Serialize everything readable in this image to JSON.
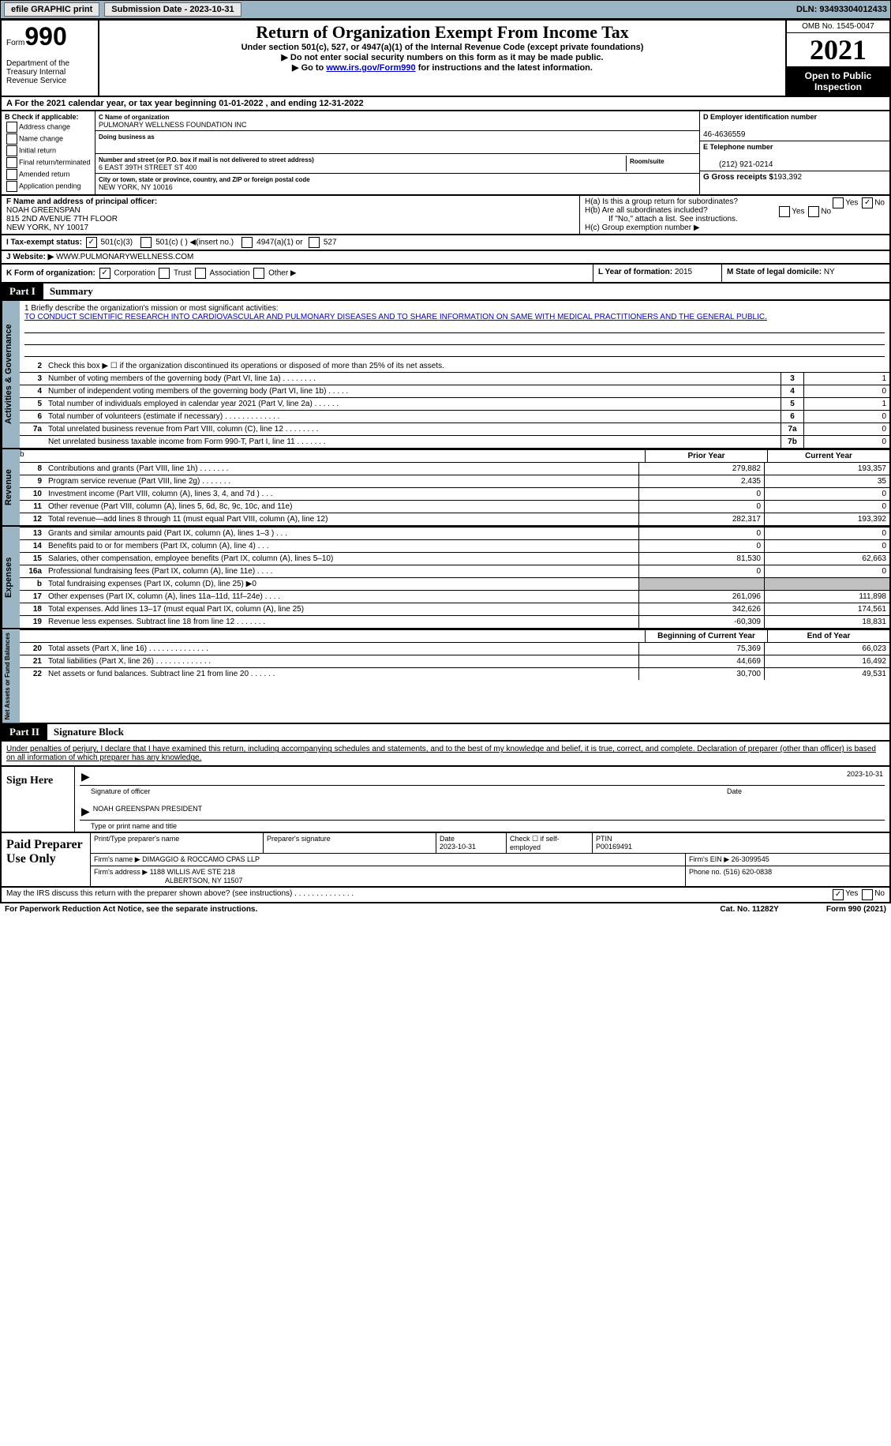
{
  "topbar": {
    "efile": "efile GRAPHIC print",
    "sub": "Submission Date - 2023-10-31",
    "dln": "DLN: 93493304012433"
  },
  "header": {
    "form": "Form",
    "num": "990",
    "title": "Return of Organization Exempt From Income Tax",
    "sub1": "Under section 501(c), 527, or 4947(a)(1) of the Internal Revenue Code (except private foundations)",
    "sub2": "▶ Do not enter social security numbers on this form as it may be made public.",
    "sub3": "▶ Go to ",
    "link": "www.irs.gov/Form990",
    "sub3b": " for instructions and the latest information.",
    "omb": "OMB No. 1545-0047",
    "year": "2021",
    "opi": "Open to Public Inspection",
    "dept": "Department of the Treasury Internal Revenue Service"
  },
  "a": {
    "text": "A For the 2021 calendar year, or tax year beginning 01-01-2022   , and ending 12-31-2022"
  },
  "b": {
    "label": "B Check if applicable:",
    "items": [
      "Address change",
      "Name change",
      "Initial return",
      "Final return/terminated",
      "Amended return",
      "Application pending"
    ]
  },
  "c": {
    "name_label": "C Name of organization",
    "name": "PULMONARY WELLNESS FOUNDATION INC",
    "dba_label": "Doing business as",
    "addr_label": "Number and street (or P.O. box if mail is not delivered to street address)",
    "addr": "6 EAST 39TH STREET ST 400",
    "room_label": "Room/suite",
    "city_label": "City or town, state or province, country, and ZIP or foreign postal code",
    "city": "NEW YORK, NY  10016"
  },
  "d": {
    "ein_label": "D Employer identification number",
    "ein": "46-4636559",
    "tel_label": "E Telephone number",
    "tel": "(212) 921-0214",
    "gross_label": "G Gross receipts $",
    "gross": "193,392"
  },
  "f": {
    "label": "F Name and address of principal officer:",
    "name": "NOAH GREENSPAN",
    "addr1": "815 2ND AVENUE 7TH FLOOR",
    "addr2": "NEW YORK, NY  10017"
  },
  "h": {
    "a": "H(a)  Is this a group return for subordinates?",
    "b": "H(b)  Are all subordinates included?",
    "bnote": "If \"No,\" attach a list. See instructions.",
    "c": "H(c)  Group exemption number ▶"
  },
  "i": {
    "label": "I   Tax-exempt status:",
    "c3": "501(c)(3)",
    "cN": "501(c) (  ) ◀(insert no.)",
    "a1": "4947(a)(1) or",
    "s527": "527"
  },
  "j": {
    "label": "J   Website: ▶",
    "val": "WWW.PULMONARYWELLNESS.COM"
  },
  "k": {
    "label": "K Form of organization:",
    "corp": "Corporation",
    "trust": "Trust",
    "assoc": "Association",
    "other": "Other ▶"
  },
  "l": {
    "label": "L Year of formation:",
    "val": "2015"
  },
  "m": {
    "label": "M State of legal domicile:",
    "val": "NY"
  },
  "part1": {
    "hdr": "Part I",
    "title": "Summary"
  },
  "mission": {
    "label": "1   Briefly describe the organization's mission or most significant activities:",
    "text": "TO CONDUCT SCIENTIFIC RESEARCH INTO CARDIOVASCULAR AND PULMONARY DISEASES AND TO SHARE INFORMATION ON SAME WITH MEDICAL PRACTITIONERS AND THE GENERAL PUBLIC."
  },
  "sum": {
    "l2": "Check this box ▶ ☐ if the organization discontinued its operations or disposed of more than 25% of its net assets.",
    "rows": [
      {
        "n": "3",
        "t": "Number of voting members of the governing body (Part VI, line 1a)   .    .    .    .    .    .    .    .",
        "b": "3",
        "v": "1"
      },
      {
        "n": "4",
        "t": "Number of independent voting members of the governing body (Part VI, line 1b)   .    .    .    .    .",
        "b": "4",
        "v": "0"
      },
      {
        "n": "5",
        "t": "Total number of individuals employed in calendar year 2021 (Part V, line 2a)   .    .    .    .    .    .",
        "b": "5",
        "v": "1"
      },
      {
        "n": "6",
        "t": "Total number of volunteers (estimate if necessary)   .    .    .    .    .    .    .    .    .    .    .    .    .",
        "b": "6",
        "v": "0"
      },
      {
        "n": "7a",
        "t": "Total unrelated business revenue from Part VIII, column (C), line 12   .    .    .    .    .    .    .    .",
        "b": "7a",
        "v": "0"
      },
      {
        "n": "",
        "t": "Net unrelated business taxable income from Form 990-T, Part I, line 11   .    .    .    .    .    .    .",
        "b": "7b",
        "v": "0"
      }
    ]
  },
  "fin": {
    "prior": "Prior Year",
    "current": "Current Year",
    "boy": "Beginning of Current Year",
    "eoy": "End of Year",
    "rev": [
      {
        "n": "8",
        "t": "Contributions and grants (Part VIII, line 1h)   .    .    .    .    .    .    .",
        "v1": "279,882",
        "v2": "193,357"
      },
      {
        "n": "9",
        "t": "Program service revenue (Part VIII, line 2g)   .    .    .    .    .    .    .",
        "v1": "2,435",
        "v2": "35"
      },
      {
        "n": "10",
        "t": "Investment income (Part VIII, column (A), lines 3, 4, and 7d )   .    .    .",
        "v1": "0",
        "v2": "0"
      },
      {
        "n": "11",
        "t": "Other revenue (Part VIII, column (A), lines 5, 6d, 8c, 9c, 10c, and 11e)",
        "v1": "0",
        "v2": "0"
      },
      {
        "n": "12",
        "t": "Total revenue—add lines 8 through 11 (must equal Part VIII, column (A), line 12)",
        "v1": "282,317",
        "v2": "193,392"
      }
    ],
    "exp": [
      {
        "n": "13",
        "t": "Grants and similar amounts paid (Part IX, column (A), lines 1–3 )   .    .    .",
        "v1": "0",
        "v2": "0"
      },
      {
        "n": "14",
        "t": "Benefits paid to or for members (Part IX, column (A), line 4)   .    .    .",
        "v1": "0",
        "v2": "0"
      },
      {
        "n": "15",
        "t": "Salaries, other compensation, employee benefits (Part IX, column (A), lines 5–10)",
        "v1": "81,530",
        "v2": "62,663"
      },
      {
        "n": "16a",
        "t": "Professional fundraising fees (Part IX, column (A), line 11e)   .    .    .    .",
        "v1": "0",
        "v2": "0"
      },
      {
        "n": "b",
        "t": "Total fundraising expenses (Part IX, column (D), line 25) ▶0",
        "v1": "",
        "v2": "",
        "shade": true
      },
      {
        "n": "17",
        "t": "Other expenses (Part IX, column (A), lines 11a–11d, 11f–24e)   .    .    .    .",
        "v1": "261,096",
        "v2": "111,898"
      },
      {
        "n": "18",
        "t": "Total expenses. Add lines 13–17 (must equal Part IX, column (A), line 25)",
        "v1": "342,626",
        "v2": "174,561"
      },
      {
        "n": "19",
        "t": "Revenue less expenses. Subtract line 18 from line 12   .    .    .    .    .    .    .",
        "v1": "-60,309",
        "v2": "18,831"
      }
    ],
    "net": [
      {
        "n": "20",
        "t": "Total assets (Part X, line 16)   .    .    .    .    .    .    .    .    .    .    .    .    .    .",
        "v1": "75,369",
        "v2": "66,023"
      },
      {
        "n": "21",
        "t": "Total liabilities (Part X, line 26)   .    .    .    .    .    .    .    .    .    .    .    .    .",
        "v1": "44,669",
        "v2": "16,492"
      },
      {
        "n": "22",
        "t": "Net assets or fund balances. Subtract line 21 from line 20   .    .    .    .    .    .",
        "v1": "30,700",
        "v2": "49,531"
      }
    ]
  },
  "vtabs": {
    "ag": "Activities & Governance",
    "rev": "Revenue",
    "exp": "Expenses",
    "net": "Net Assets or Fund Balances"
  },
  "part2": {
    "hdr": "Part II",
    "title": "Signature Block",
    "decl": "Under penalties of perjury, I declare that I have examined this return, including accompanying schedules and statements, and to the best of my knowledge and belief, it is true, correct, and complete. Declaration of preparer (other than officer) is based on all information of which preparer has any knowledge."
  },
  "sign": {
    "left": "Sign Here",
    "sig_label": "Signature of officer",
    "date": "2023-10-31",
    "date_label": "Date",
    "name": "NOAH GREENSPAN PRESIDENT",
    "name_label": "Type or print name and title"
  },
  "prep": {
    "left": "Paid Preparer Use Only",
    "pn_label": "Print/Type preparer's name",
    "ps_label": "Preparer's signature",
    "pd_label": "Date",
    "pd": "2023-10-31",
    "se_label": "Check ☐ if self-employed",
    "ptin_label": "PTIN",
    "ptin": "P00169491",
    "firm_label": "Firm's name    ▶",
    "firm": "DIMAGGIO & ROCCAMO CPAS LLP",
    "fein_label": "Firm's EIN ▶",
    "fein": "26-3099545",
    "addr_label": "Firm's address ▶",
    "addr1": "1188 WILLIS AVE STE 218",
    "addr2": "ALBERTSON, NY  11507",
    "phone_label": "Phone no.",
    "phone": "(516) 620-0838"
  },
  "bottom": {
    "q": "May the IRS discuss this return with the preparer shown above? (see instructions)   .    .    .    .    .    .    .    .    .    .    .    .    .    .",
    "yes": "Yes",
    "no": "No"
  },
  "footer": {
    "l": "For Paperwork Reduction Act Notice, see the separate instructions.",
    "c": "Cat. No. 11282Y",
    "r": "Form 990 (2021)"
  }
}
